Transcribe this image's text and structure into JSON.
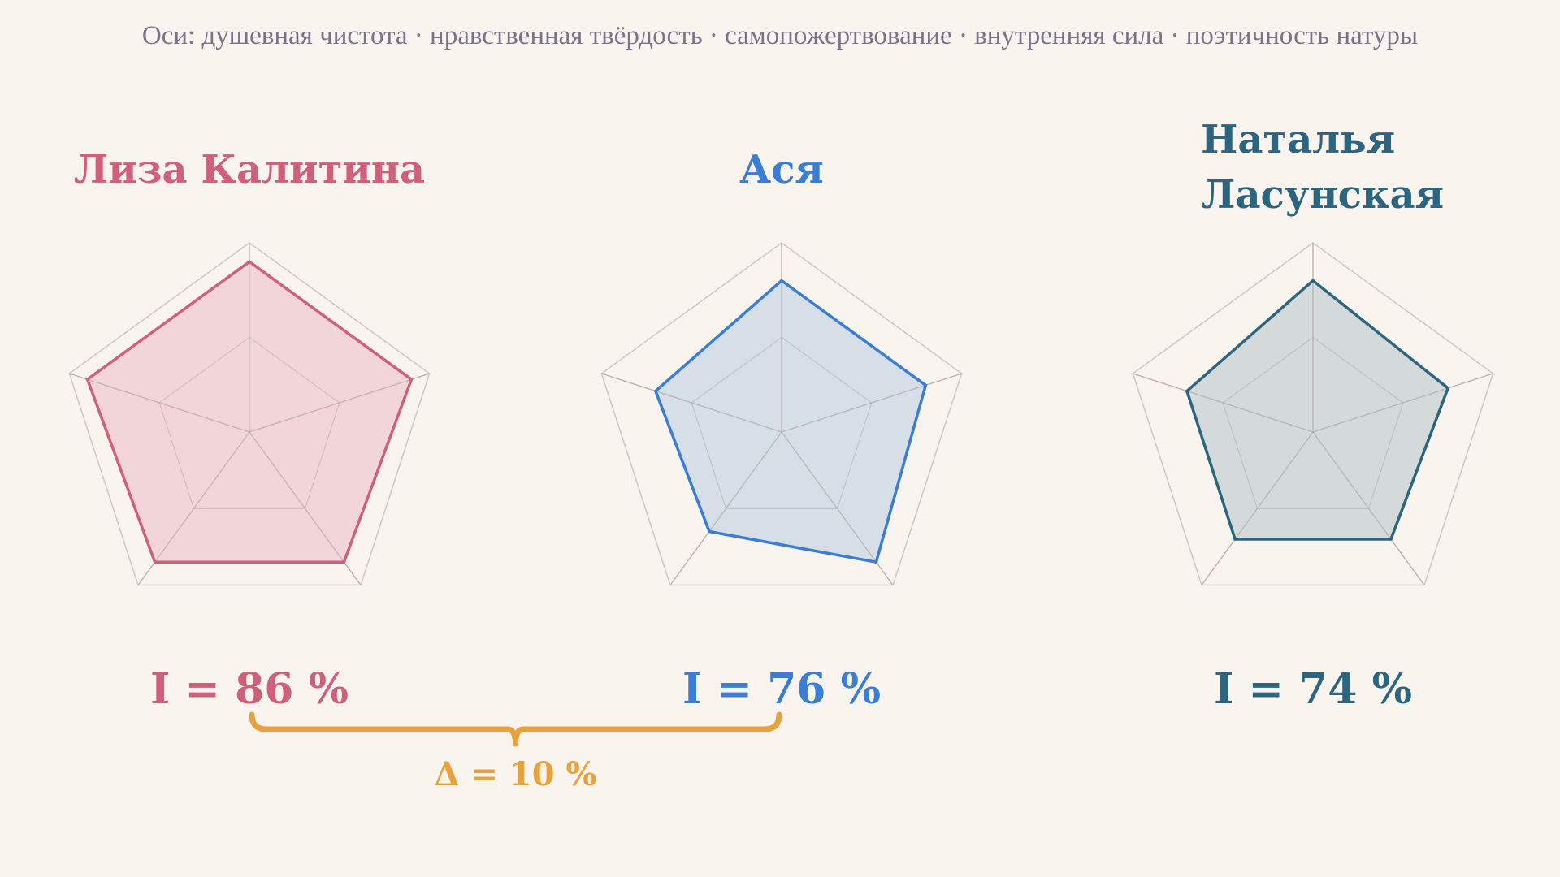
{
  "axes_caption": "Оси: душевная чистота · нравственная твёрдость · самопожертвование · внутренняя сила · поэтичность натуры",
  "colors": {
    "background": "#faf4ee",
    "grid": "#cfcac6",
    "caption": "#77738b",
    "delta": "#e8a23c"
  },
  "chart_data": {
    "type": "radar",
    "axes": [
      "душевная чистота",
      "нравственная твёрдость",
      "самопожертвование",
      "внутренняя сила",
      "поэтичность натуры"
    ],
    "axis_order_note": "",
    "rlim": [
      0,
      1
    ],
    "grid_levels": [
      0.5,
      1.0
    ],
    "series": [
      {
        "name": "Лиза Калитина",
        "name_lines": [
          "Лиза Калитина"
        ],
        "values": [
          0.9,
          0.9,
          0.85,
          0.85,
          0.9
        ],
        "index_label": "I = 86 %",
        "color": "#d0607a",
        "fill": "#efcfd3"
      },
      {
        "name": "Ася",
        "name_lines": [
          "Ася"
        ],
        "values": [
          0.8,
          0.8,
          0.85,
          0.65,
          0.7
        ],
        "index_label": "I = 76 %",
        "color": "#3a7dd4",
        "fill": "#cfd9e6"
      },
      {
        "name": "Наталья Ласунская",
        "name_lines": [
          "Наталья",
          "Ласунская"
        ],
        "values": [
          0.8,
          0.75,
          0.7,
          0.7,
          0.7
        ],
        "index_label": "I = 74 %",
        "color": "#2b6580",
        "fill": "#cbd5d5"
      }
    ],
    "delta": {
      "from_series": 0,
      "to_series": 1,
      "label": "Δ = 10 %"
    }
  }
}
